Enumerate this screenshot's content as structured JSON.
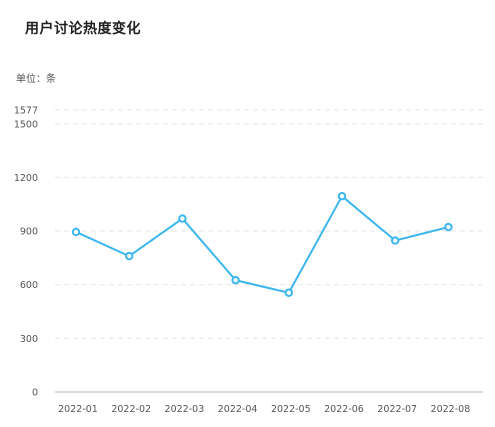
{
  "title": "用户讨论热度变化",
  "unit": "单位：条",
  "chart_data": {
    "type": "line",
    "title": "用户讨论热度变化",
    "xlabel": "",
    "ylabel": "单位：条",
    "categories": [
      "2022-01",
      "2022-02",
      "2022-03",
      "2022-04",
      "2022-05",
      "2022-06",
      "2022-07",
      "2022-08"
    ],
    "series": [
      {
        "values": [
          895,
          760,
          970,
          625,
          555,
          1095,
          847,
          922
        ]
      }
    ],
    "ylim": [
      0,
      1577
    ],
    "yticks": [
      0,
      300,
      600,
      900,
      1200,
      1500,
      1577
    ],
    "grid": true,
    "legend": "none"
  },
  "colors": {
    "line": "#3cb6ee",
    "marker_fill": "#ffffff",
    "grid": "#e6e6e6",
    "axis": "#b8b8b8",
    "tick_text": "#555555"
  }
}
